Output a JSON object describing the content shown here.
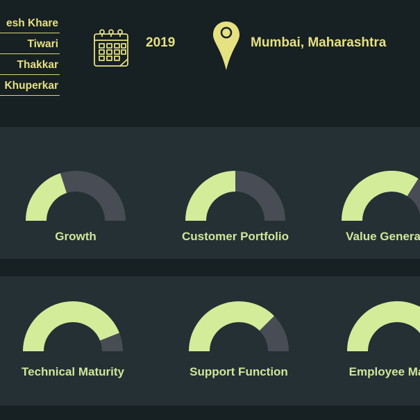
{
  "header": {
    "founders": [
      "esh Khare",
      "Tiwari",
      "Thakkar",
      "Khuperkar"
    ],
    "year": "2019",
    "location": "Mumbai, Maharashtra",
    "icons": {
      "calendar": "calendar-icon",
      "location": "map-pin-icon"
    }
  },
  "colors": {
    "background": "#172023",
    "panel": "#243033",
    "gauge_fill": "#d2ec9a",
    "gauge_track": "#484c54",
    "accent_text": "#e6e181",
    "label_text": "#d0e69a"
  },
  "metrics_row1": [
    {
      "label": "Growth",
      "score": 0.4
    },
    {
      "label": "Customer Portfolio",
      "score": 0.5
    },
    {
      "label": "Value Genera",
      "score": 0.68
    }
  ],
  "metrics_row2": [
    {
      "label": "Technical Maturity",
      "score": 0.88
    },
    {
      "label": "Support Function",
      "score": 0.75
    },
    {
      "label": "Employee Ma",
      "score": 0.85
    }
  ]
}
